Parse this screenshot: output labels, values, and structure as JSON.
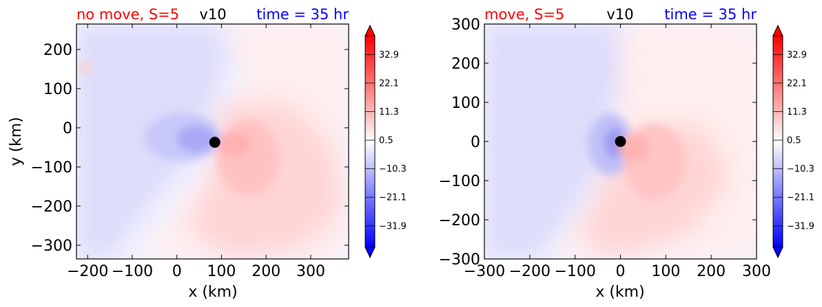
{
  "chart_data": [
    {
      "type": "heatmap",
      "title_left": "no move, S=5",
      "title_center": "v10",
      "title_right": "time = 35 hr",
      "title_colors": {
        "left": "#ff0000",
        "center": "#000000",
        "right": "#0000ff"
      },
      "xlabel": "x (km)",
      "ylabel": "y (km)",
      "xlim": [
        -225,
        385
      ],
      "ylim": [
        -335,
        265
      ],
      "xticks": [
        -200,
        -100,
        0,
        100,
        200,
        300
      ],
      "yticks": [
        -300,
        -200,
        -100,
        0,
        100,
        200
      ],
      "xtick_labels": [
        "−200",
        "−100",
        "0",
        "100",
        "200",
        "300"
      ],
      "ytick_labels": [
        "−300",
        "−200",
        "−100",
        "0",
        "100",
        "200"
      ],
      "center_marker": {
        "x": 85,
        "y": -37,
        "color": "#000000"
      },
      "colorbar": {
        "ticks": [
          32.9,
          22.1,
          11.3,
          0.5,
          -10.3,
          -21.1,
          -31.9
        ],
        "tick_labels": [
          "32.9",
          "22.1",
          "11.3",
          "0.5",
          "−10.3",
          "−21.1",
          "−31.9"
        ],
        "range": [
          -40,
          40
        ],
        "extend": "both",
        "colormap": "bwr"
      }
    },
    {
      "type": "heatmap",
      "title_left": "move, S=5",
      "title_center": "v10",
      "title_right": "time = 35 hr",
      "title_colors": {
        "left": "#ff0000",
        "center": "#000000",
        "right": "#0000ff"
      },
      "xlabel": "x (km)",
      "ylabel": "",
      "xlim": [
        -300,
        300
      ],
      "ylim": [
        -300,
        300
      ],
      "xticks": [
        -300,
        -200,
        -100,
        0,
        100,
        200,
        300
      ],
      "yticks": [
        -300,
        -200,
        -100,
        0,
        100,
        200,
        300
      ],
      "xtick_labels": [
        "−300",
        "−200",
        "−100",
        "0",
        "100",
        "200",
        "300"
      ],
      "ytick_labels": [
        "−300",
        "−200",
        "−100",
        "0",
        "100",
        "200",
        "300"
      ],
      "center_marker": {
        "x": 0,
        "y": 0,
        "color": "#000000"
      },
      "colorbar": {
        "ticks": [
          32.9,
          22.1,
          11.3,
          0.5,
          -10.3,
          -21.1,
          -31.9
        ],
        "tick_labels": [
          "32.9",
          "22.1",
          "11.3",
          "0.5",
          "−10.3",
          "−21.1",
          "−31.9"
        ],
        "range": [
          -40,
          40
        ],
        "extend": "both",
        "colormap": "bwr"
      }
    }
  ]
}
